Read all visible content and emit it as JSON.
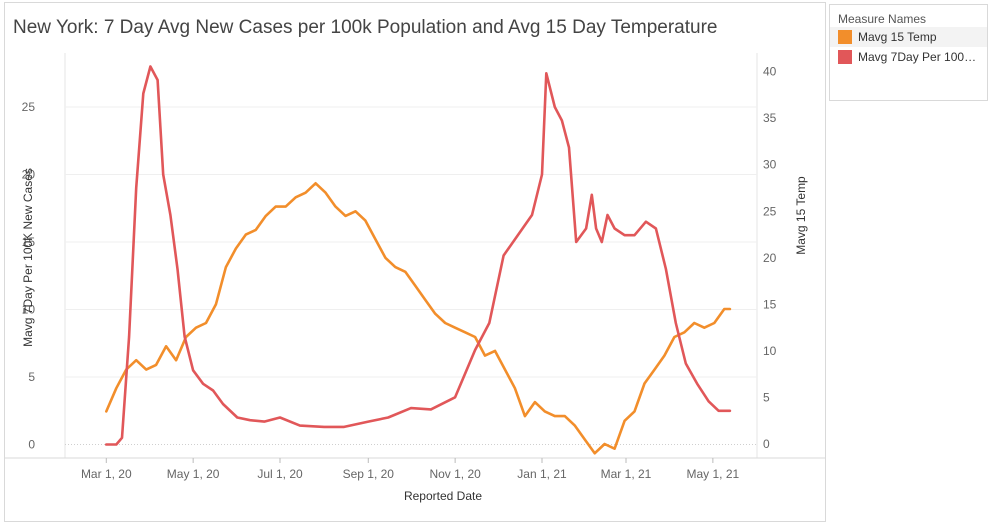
{
  "title": "New York: 7 Day Avg New Cases per 100k Population and Avg 15 Day Temperature",
  "legend": {
    "title": "Measure Names",
    "items": [
      {
        "label": "Mavg 15 Temp",
        "color": "#f28e2b"
      },
      {
        "label": "Mavg 7Day Per 100K ...",
        "color": "#e15759"
      }
    ]
  },
  "chart_data": {
    "type": "line",
    "title": "New York: 7 Day Avg New Cases per 100k Population and Avg 15 Day Temperature",
    "xlabel": "Reported Date",
    "ylabel_left": "Mavg 7Day Per 100K New Cases",
    "ylabel_right": "Mavg 15 Temp",
    "ylim_left": [
      -1,
      29
    ],
    "ylim_right": [
      -1.5,
      42
    ],
    "yticks_left": [
      0,
      5,
      10,
      15,
      20,
      25
    ],
    "yticks_right": [
      0,
      5,
      10,
      15,
      20,
      25,
      30,
      35,
      40
    ],
    "x_ticks": [
      "Mar 1, 20",
      "May 1, 20",
      "Jul 1, 20",
      "Sep 1, 20",
      "Nov 1, 20",
      "Jan 1, 21",
      "Mar 1, 21",
      "May 1, 21"
    ],
    "grid": "horizontal",
    "legend": "right",
    "series": [
      {
        "name": "Mavg 15 Temp",
        "axis": "right",
        "color": "#f28e2b",
        "x": [
          "2020-03-01",
          "2020-03-08",
          "2020-03-15",
          "2020-03-22",
          "2020-03-29",
          "2020-04-05",
          "2020-04-12",
          "2020-04-19",
          "2020-04-26",
          "2020-05-03",
          "2020-05-10",
          "2020-05-17",
          "2020-05-24",
          "2020-05-31",
          "2020-06-07",
          "2020-06-14",
          "2020-06-21",
          "2020-06-28",
          "2020-07-05",
          "2020-07-12",
          "2020-07-19",
          "2020-07-26",
          "2020-08-02",
          "2020-08-09",
          "2020-08-16",
          "2020-08-23",
          "2020-08-30",
          "2020-09-06",
          "2020-09-13",
          "2020-09-20",
          "2020-09-27",
          "2020-10-04",
          "2020-10-11",
          "2020-10-18",
          "2020-10-25",
          "2020-11-01",
          "2020-11-08",
          "2020-11-15",
          "2020-11-22",
          "2020-11-29",
          "2020-12-06",
          "2020-12-13",
          "2020-12-20",
          "2020-12-27",
          "2021-01-03",
          "2021-01-10",
          "2021-01-17",
          "2021-01-24",
          "2021-01-31",
          "2021-02-07",
          "2021-02-14",
          "2021-02-21",
          "2021-02-28",
          "2021-03-07",
          "2021-03-14",
          "2021-03-21",
          "2021-03-28",
          "2021-04-04",
          "2021-04-11",
          "2021-04-18",
          "2021-04-25",
          "2021-05-02",
          "2021-05-09",
          "2021-05-13"
        ],
        "values": [
          3.5,
          6,
          8,
          9,
          8,
          8.5,
          10.5,
          9,
          11.5,
          12.5,
          13,
          15,
          19,
          21,
          22.5,
          23,
          24.5,
          25.5,
          25.5,
          26.5,
          27,
          28,
          27,
          25.5,
          24.5,
          25,
          24,
          22,
          20,
          19,
          18.5,
          17,
          15.5,
          14,
          13,
          12.5,
          12,
          11.5,
          9.5,
          10,
          8,
          6,
          3,
          4.5,
          3.5,
          3,
          3,
          2,
          0.5,
          -1,
          0,
          -0.5,
          2.5,
          3.5,
          6.5,
          8,
          9.5,
          11.5,
          12,
          13,
          12.5,
          13,
          14.5,
          14.5
        ]
      },
      {
        "name": "Mavg 7Day Per 100K ...",
        "axis": "left",
        "color": "#e15759",
        "x": [
          "2020-03-01",
          "2020-03-08",
          "2020-03-12",
          "2020-03-17",
          "2020-03-22",
          "2020-03-27",
          "2020-04-01",
          "2020-04-06",
          "2020-04-10",
          "2020-04-15",
          "2020-04-20",
          "2020-04-25",
          "2020-05-01",
          "2020-05-08",
          "2020-05-15",
          "2020-05-22",
          "2020-06-01",
          "2020-06-10",
          "2020-06-20",
          "2020-07-01",
          "2020-07-15",
          "2020-08-01",
          "2020-08-15",
          "2020-09-01",
          "2020-09-15",
          "2020-10-01",
          "2020-10-15",
          "2020-11-01",
          "2020-11-15",
          "2020-11-25",
          "2020-12-05",
          "2020-12-15",
          "2020-12-25",
          "2021-01-01",
          "2021-01-04",
          "2021-01-10",
          "2021-01-15",
          "2021-01-20",
          "2021-01-25",
          "2021-02-01",
          "2021-02-05",
          "2021-02-08",
          "2021-02-12",
          "2021-02-16",
          "2021-02-21",
          "2021-02-28",
          "2021-03-07",
          "2021-03-15",
          "2021-03-22",
          "2021-03-29",
          "2021-04-05",
          "2021-04-12",
          "2021-04-20",
          "2021-04-28",
          "2021-05-05",
          "2021-05-13"
        ],
        "values": [
          0,
          0,
          0.5,
          8,
          19,
          26,
          28,
          27,
          20,
          17,
          13,
          8,
          5.5,
          4.5,
          4,
          3,
          2,
          1.8,
          1.7,
          2,
          1.4,
          1.3,
          1.3,
          1.7,
          2,
          2.7,
          2.6,
          3.5,
          7,
          9,
          14,
          15.5,
          17,
          20,
          27.5,
          25,
          24,
          22,
          15,
          16,
          18.5,
          16,
          15,
          17,
          16,
          15.5,
          15.5,
          16.5,
          16,
          13,
          9,
          6,
          4.5,
          3.2,
          2.5,
          2.5
        ]
      }
    ]
  }
}
